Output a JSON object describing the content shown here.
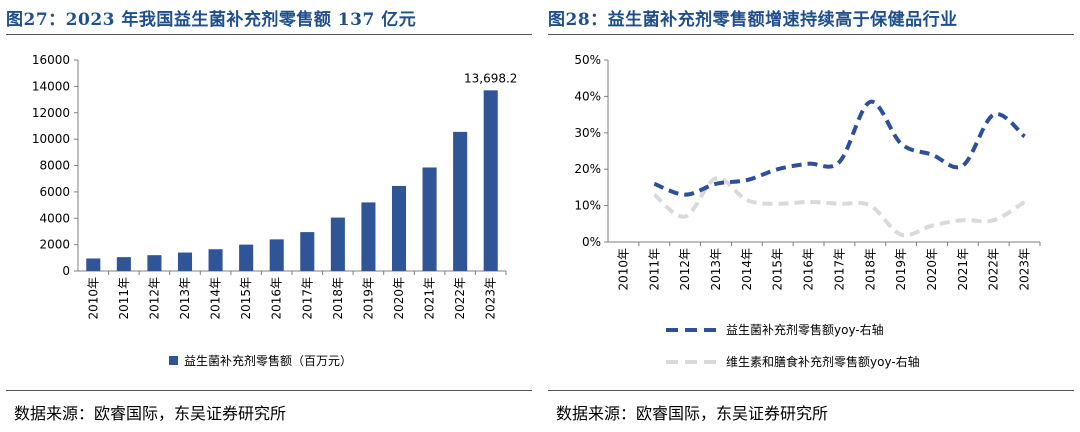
{
  "left": {
    "title": "图27：2023 年我国益生菌补充剂零售额 137 亿元",
    "source": "数据来源：欧睿国际，东吴证券研究所"
  },
  "right": {
    "title": "图28：益生菌补充剂零售额增速持续高于保健品行业",
    "source": "数据来源：欧睿国际，东吴证券研究所"
  },
  "colors": {
    "title": "#1f4e8c",
    "bar": "#2f5597",
    "line1": "#2f4f9b",
    "line2": "#d9d9d9"
  },
  "chart_data": [
    {
      "type": "bar",
      "categories": [
        "2010年",
        "2011年",
        "2012年",
        "2013年",
        "2014年",
        "2015年",
        "2016年",
        "2017年",
        "2018年",
        "2019年",
        "2020年",
        "2021年",
        "2022年",
        "2023年"
      ],
      "series": [
        {
          "name": "益生菌补充剂零售额（百万元）",
          "values": [
            950,
            1050,
            1200,
            1400,
            1650,
            2000,
            2400,
            2950,
            4050,
            5200,
            6450,
            7850,
            10550,
            13698.2
          ]
        }
      ],
      "data_labels": [
        {
          "category": "2023年",
          "text": "13,698.2"
        }
      ],
      "ylim": [
        0,
        16000
      ],
      "yticks": [
        "0",
        "2000",
        "4000",
        "6000",
        "8000",
        "10000",
        "12000",
        "14000",
        "16000"
      ],
      "legend": "bottom"
    },
    {
      "type": "line",
      "categories": [
        "2010年",
        "2011年",
        "2012年",
        "2013年",
        "2014年",
        "2015年",
        "2016年",
        "2017年",
        "2018年",
        "2019年",
        "2020年",
        "2021年",
        "2022年",
        "2023年"
      ],
      "series": [
        {
          "name": "益生菌补充剂零售额yoy-右轴",
          "style": "dashed",
          "values": [
            null,
            16,
            13,
            16,
            17,
            20,
            21.5,
            22,
            38.5,
            27,
            24,
            21,
            35,
            29
          ]
        },
        {
          "name": "维生素和膳食补充剂零售额yoy-右轴",
          "style": "dashed",
          "values": [
            null,
            13,
            7,
            17.5,
            11.5,
            10.5,
            11,
            10.5,
            10,
            2,
            4.5,
            6,
            6,
            11
          ]
        }
      ],
      "ylim": [
        0,
        50
      ],
      "yticks": [
        "0%",
        "10%",
        "20%",
        "30%",
        "40%",
        "50%"
      ],
      "legend": "bottom"
    }
  ]
}
